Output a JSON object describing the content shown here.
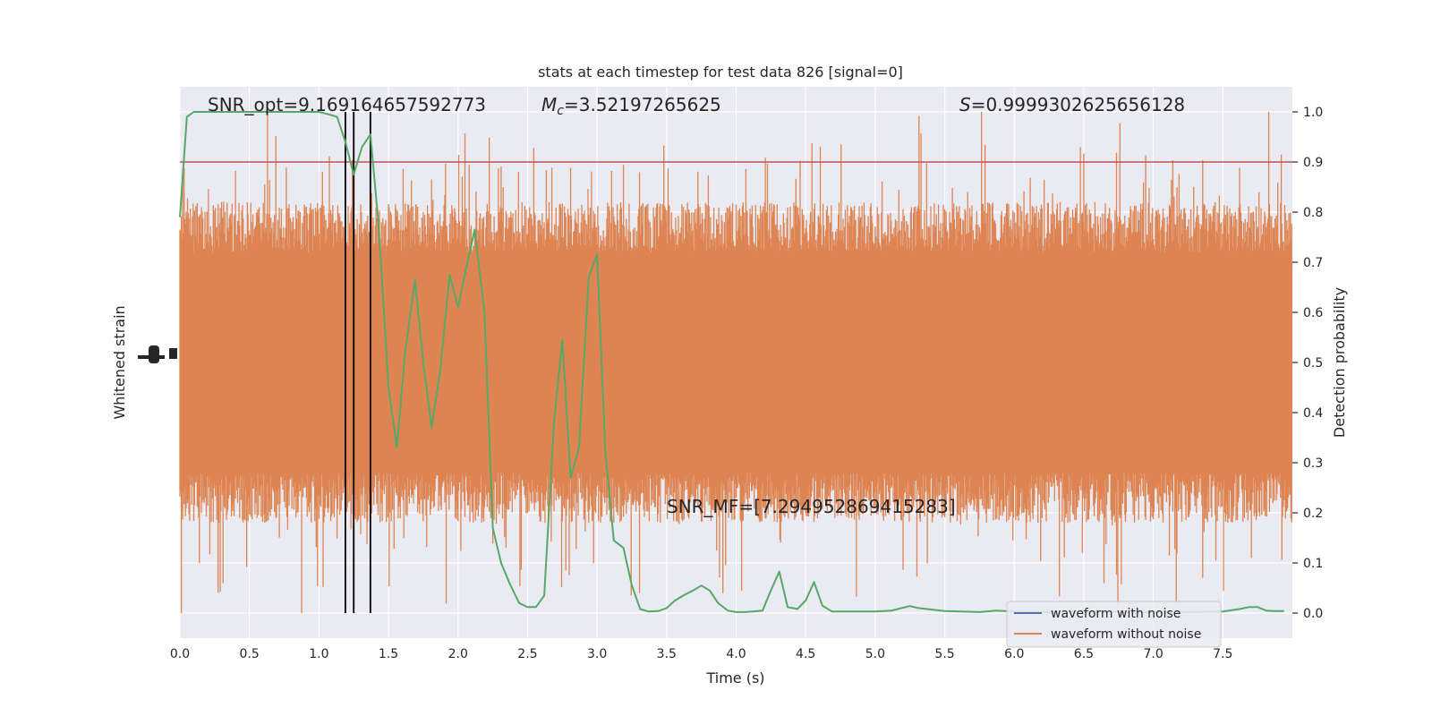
{
  "chart_data": {
    "type": "line",
    "title": "stats at each timestep for test data 826 [signal=0]",
    "xlabel": "Time (s)",
    "ylabel_left": "Whitened strain",
    "ylabel_right": "Detection probability",
    "xlim": [
      0.0,
      8.0
    ],
    "ylim_right": [
      -0.05,
      1.05
    ],
    "x_ticks": [
      0.0,
      0.5,
      1.0,
      1.5,
      2.0,
      2.5,
      3.0,
      3.5,
      4.0,
      4.5,
      5.0,
      5.5,
      6.0,
      6.5,
      7.0,
      7.5
    ],
    "x_tick_labels": [
      "0.0",
      "0.5",
      "1.0",
      "1.5",
      "2.0",
      "2.5",
      "3.0",
      "3.5",
      "4.0",
      "4.5",
      "5.0",
      "5.5",
      "6.0",
      "6.5",
      "7.0",
      "7.5"
    ],
    "y_right_ticks": [
      0.0,
      0.1,
      0.2,
      0.3,
      0.4,
      0.5,
      0.6,
      0.7,
      0.8,
      0.9,
      1.0
    ],
    "y_right_tick_labels": [
      "0.0",
      "0.1",
      "0.2",
      "0.3",
      "0.4",
      "0.5",
      "0.6",
      "0.7",
      "0.8",
      "0.9",
      "1.0"
    ],
    "grid": true,
    "annotations": {
      "snr_opt": "SNR_opt=9.169164657592773",
      "mc_symbol": "M",
      "mc_subscript": "c",
      "mc_value": "=3.52197265625",
      "s_symbol": "S",
      "s_value": "=0.9999302625656128",
      "snr_mf": "SNR_MF=[7.294952869415283]"
    },
    "threshold": 0.9,
    "vertical_lines": [
      1.19,
      1.25,
      1.37
    ],
    "legend": {
      "placement": "lower-right",
      "entries": [
        "waveform with noise",
        "waveform without noise"
      ]
    },
    "series": [
      {
        "name": "waveform without noise",
        "kind": "noise-band",
        "color": "#dd8452",
        "band_center": 0.5,
        "band_core_halfwidth": 0.2,
        "band_peak_max": 1.0,
        "band_trough_min": 0.0
      },
      {
        "name": "detection probability",
        "kind": "line",
        "color": "#55a868",
        "points": [
          [
            0.0,
            0.79
          ],
          [
            0.05,
            0.99
          ],
          [
            0.1,
            1.0
          ],
          [
            0.2,
            1.0
          ],
          [
            0.3,
            1.0
          ],
          [
            0.4,
            1.0
          ],
          [
            0.5,
            1.0
          ],
          [
            0.6,
            1.0
          ],
          [
            0.7,
            1.0
          ],
          [
            0.8,
            1.0
          ],
          [
            0.9,
            1.0
          ],
          [
            1.0,
            1.0
          ],
          [
            1.07,
            0.995
          ],
          [
            1.13,
            0.99
          ],
          [
            1.19,
            0.94
          ],
          [
            1.25,
            0.875
          ],
          [
            1.31,
            0.93
          ],
          [
            1.37,
            0.955
          ],
          [
            1.43,
            0.77
          ],
          [
            1.5,
            0.45
          ],
          [
            1.56,
            0.33
          ],
          [
            1.62,
            0.52
          ],
          [
            1.69,
            0.665
          ],
          [
            1.75,
            0.5
          ],
          [
            1.81,
            0.37
          ],
          [
            1.87,
            0.48
          ],
          [
            1.94,
            0.675
          ],
          [
            2.0,
            0.61
          ],
          [
            2.06,
            0.69
          ],
          [
            2.12,
            0.765
          ],
          [
            2.19,
            0.6
          ],
          [
            2.25,
            0.17
          ],
          [
            2.31,
            0.1
          ],
          [
            2.37,
            0.06
          ],
          [
            2.44,
            0.02
          ],
          [
            2.5,
            0.012
          ],
          [
            2.56,
            0.012
          ],
          [
            2.62,
            0.035
          ],
          [
            2.69,
            0.38
          ],
          [
            2.75,
            0.545
          ],
          [
            2.81,
            0.27
          ],
          [
            2.87,
            0.33
          ],
          [
            2.94,
            0.67
          ],
          [
            3.0,
            0.715
          ],
          [
            3.06,
            0.32
          ],
          [
            3.12,
            0.145
          ],
          [
            3.19,
            0.13
          ],
          [
            3.25,
            0.055
          ],
          [
            3.31,
            0.008
          ],
          [
            3.37,
            0.003
          ],
          [
            3.44,
            0.004
          ],
          [
            3.5,
            0.01
          ],
          [
            3.56,
            0.025
          ],
          [
            3.62,
            0.035
          ],
          [
            3.69,
            0.045
          ],
          [
            3.75,
            0.055
          ],
          [
            3.81,
            0.045
          ],
          [
            3.87,
            0.02
          ],
          [
            3.94,
            0.005
          ],
          [
            4.0,
            0.002
          ],
          [
            4.06,
            0.002
          ],
          [
            4.12,
            0.003
          ],
          [
            4.19,
            0.005
          ],
          [
            4.25,
            0.045
          ],
          [
            4.31,
            0.083
          ],
          [
            4.37,
            0.012
          ],
          [
            4.44,
            0.008
          ],
          [
            4.5,
            0.025
          ],
          [
            4.56,
            0.062
          ],
          [
            4.62,
            0.015
          ],
          [
            4.69,
            0.003
          ],
          [
            4.75,
            0.003
          ],
          [
            5.0,
            0.003
          ],
          [
            5.12,
            0.005
          ],
          [
            5.19,
            0.01
          ],
          [
            5.25,
            0.014
          ],
          [
            5.31,
            0.01
          ],
          [
            5.5,
            0.004
          ],
          [
            5.75,
            0.002
          ],
          [
            5.87,
            0.005
          ],
          [
            6.0,
            0.003
          ],
          [
            6.25,
            0.002
          ],
          [
            6.5,
            0.003
          ],
          [
            7.0,
            0.002
          ],
          [
            7.25,
            0.002
          ],
          [
            7.5,
            0.003
          ],
          [
            7.62,
            0.008
          ],
          [
            7.69,
            0.012
          ],
          [
            7.75,
            0.012
          ],
          [
            7.81,
            0.005
          ],
          [
            7.87,
            0.004
          ],
          [
            7.94,
            0.004
          ]
        ]
      }
    ],
    "colors": {
      "background": "#eaeaf2",
      "grid": "#ffffff",
      "threshold": "#c44e52",
      "vlines": "#000000",
      "legend_noise": "#4c72b0",
      "legend_clean": "#dd8452"
    }
  }
}
